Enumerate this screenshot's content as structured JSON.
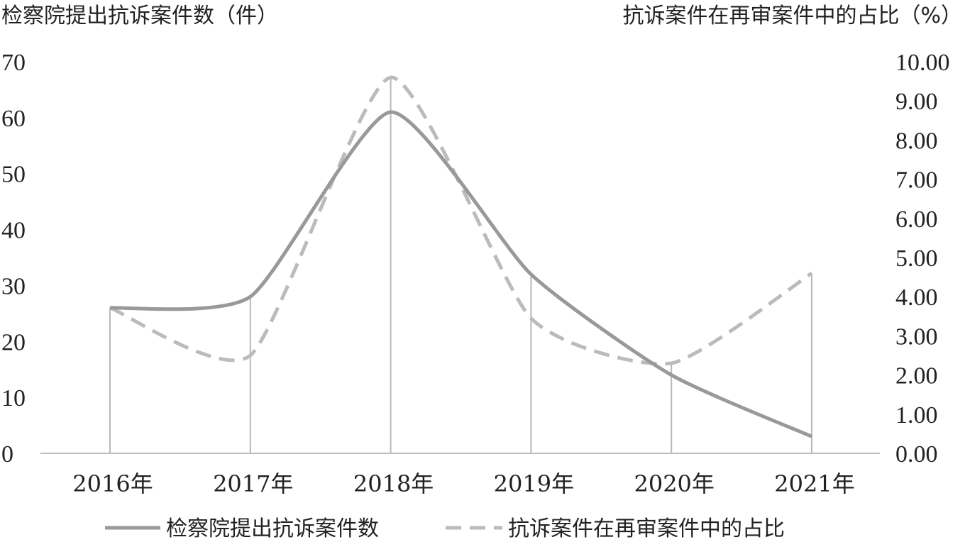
{
  "chart_data": {
    "type": "line",
    "categories": [
      "2016年",
      "2017年",
      "2018年",
      "2019年",
      "2020年",
      "2021年"
    ],
    "left_axis": {
      "title": "检察院提出抗诉案件数（件）",
      "ylim": [
        0,
        70
      ],
      "ticks": [
        "0",
        "10",
        "20",
        "30",
        "40",
        "50",
        "60",
        "70"
      ]
    },
    "right_axis": {
      "title": "抗诉案件在再审案件中的占比（%）",
      "ylim": [
        0,
        10
      ],
      "ticks": [
        "0.00",
        "1.00",
        "2.00",
        "3.00",
        "4.00",
        "5.00",
        "6.00",
        "7.00",
        "8.00",
        "9.00",
        "10.00"
      ]
    },
    "series": [
      {
        "name": "检察院提出抗诉案件数",
        "axis": "left",
        "style": "solid",
        "color": "#999999",
        "values": [
          26,
          28,
          61,
          32,
          14,
          3
        ]
      },
      {
        "name": "抗诉案件在再审案件中的占比",
        "axis": "right",
        "style": "dashed",
        "color": "#bbbbbb",
        "values": [
          3.72,
          2.5,
          9.6,
          3.45,
          2.3,
          4.6
        ]
      }
    ],
    "drop_lines": true,
    "legend_position": "bottom",
    "grid": false
  }
}
